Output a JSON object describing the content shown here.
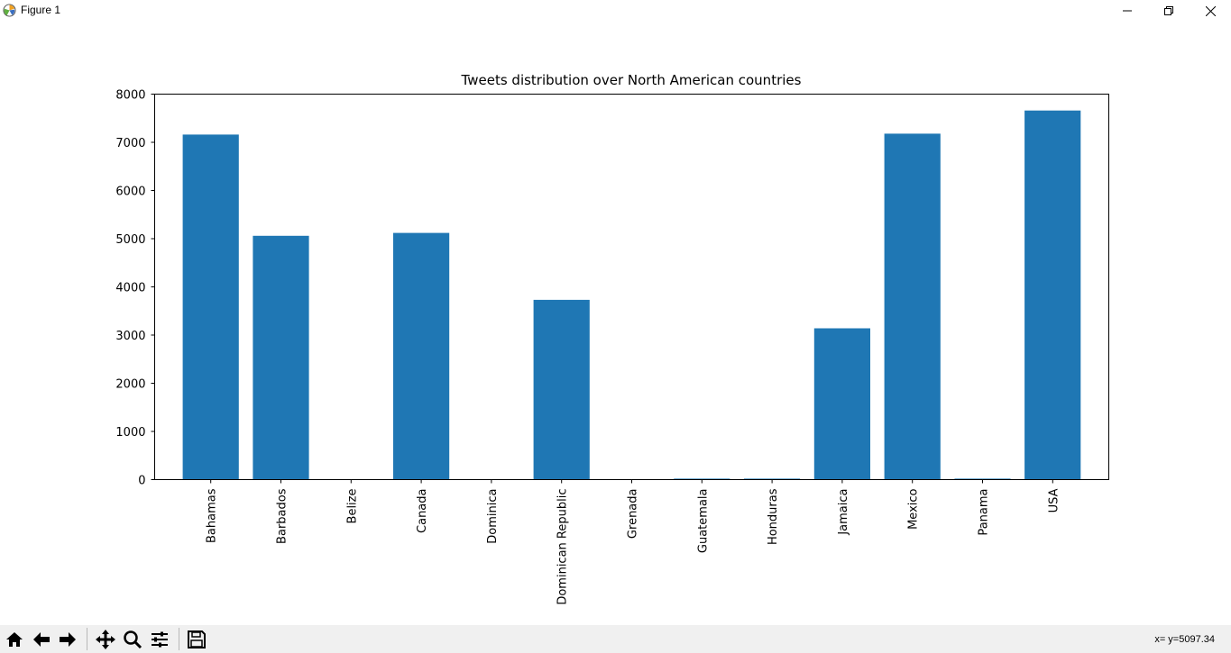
{
  "window": {
    "title": "Figure 1",
    "controls": {
      "minimize": "minimize-icon",
      "maximize": "restore-icon",
      "close": "close-icon"
    }
  },
  "toolbar": {
    "tools": [
      {
        "name": "home-icon"
      },
      {
        "name": "back-arrow-icon"
      },
      {
        "name": "forward-arrow-icon"
      },
      {
        "name": "pan-icon"
      },
      {
        "name": "zoom-icon"
      },
      {
        "name": "subplots-icon"
      },
      {
        "name": "save-icon"
      }
    ],
    "coords": "x= y=5097.34"
  },
  "chart_data": {
    "type": "bar",
    "title": "Tweets distribution over North American countries",
    "xlabel": "",
    "ylabel": "",
    "categories": [
      "Bahamas",
      "Barbados",
      "Belize",
      "Canada",
      "Dominica",
      "Dominican Republic",
      "Grenada",
      "Guatemala",
      "Honduras",
      "Jamaica",
      "Mexico",
      "Panama",
      "USA"
    ],
    "values": [
      7160,
      5060,
      1,
      5120,
      1,
      3730,
      2,
      20,
      20,
      3140,
      7180,
      20,
      7660
    ],
    "ylim": [
      0,
      8000
    ],
    "yticks": [
      0,
      1000,
      2000,
      3000,
      4000,
      5000,
      6000,
      7000,
      8000
    ],
    "bar_color": "#1f77b4",
    "grid": false
  }
}
